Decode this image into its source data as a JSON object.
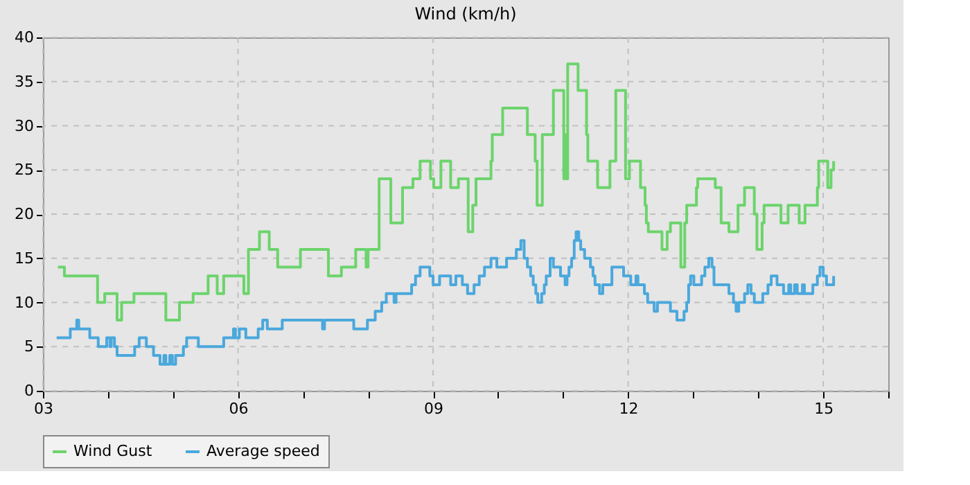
{
  "chart_data": {
    "type": "step",
    "title": "Wind (km/h)",
    "xlim": [
      3,
      16
    ],
    "xticks": [
      {
        "value": 3,
        "label": "03"
      },
      {
        "value": 4,
        "label": null
      },
      {
        "value": 5,
        "label": null
      },
      {
        "value": 6,
        "label": "06"
      },
      {
        "value": 7,
        "label": null
      },
      {
        "value": 8,
        "label": null
      },
      {
        "value": 9,
        "label": "09"
      },
      {
        "value": 10,
        "label": null
      },
      {
        "value": 11,
        "label": null
      },
      {
        "value": 12,
        "label": "12"
      },
      {
        "value": 13,
        "label": null
      },
      {
        "value": 14,
        "label": null
      },
      {
        "value": 15,
        "label": "15"
      },
      {
        "value": 16,
        "label": null
      }
    ],
    "ylim": [
      0,
      40
    ],
    "yticks": [
      0,
      5,
      10,
      15,
      20,
      25,
      30,
      35,
      40
    ],
    "grid": true,
    "legend": "bottom",
    "line_style": "solid",
    "marker": "none",
    "series": [
      {
        "name": "Wind Gust",
        "color": "#6cd46c",
        "x": [
          3.23,
          3.33,
          3.84,
          3.95,
          4.14,
          4.21,
          4.4,
          4.89,
          5.1,
          5.31,
          5.54,
          5.68,
          5.78,
          6.09,
          6.16,
          6.33,
          6.48,
          6.61,
          6.96,
          7.39,
          7.59,
          7.81,
          7.97,
          8.0,
          8.17,
          8.35,
          8.53,
          8.69,
          8.8,
          8.96,
          9.01,
          9.12,
          9.27,
          9.39,
          9.54,
          9.61,
          9.66,
          9.89,
          9.91,
          10.07,
          10.45,
          10.57,
          10.6,
          10.68,
          10.85,
          11.01,
          11.03,
          11.05,
          11.07,
          11.23,
          11.36,
          11.38,
          11.53,
          11.72,
          11.81,
          11.96,
          12.02,
          12.19,
          12.26,
          12.28,
          12.31,
          12.52,
          12.6,
          12.65,
          12.81,
          12.87,
          12.9,
          13.05,
          13.07,
          13.34,
          13.43,
          13.55,
          13.69,
          13.79,
          13.94,
          13.98,
          14.06,
          14.09,
          14.35,
          14.46,
          14.63,
          14.72,
          14.91,
          14.93,
          15.07,
          15.12,
          15.16
        ],
        "values": [
          14,
          13,
          10,
          11,
          8,
          10,
          11,
          8,
          10,
          11,
          13,
          11,
          13,
          11,
          16,
          18,
          16,
          14,
          16,
          13,
          14,
          16,
          14,
          16,
          24,
          19,
          23,
          24,
          26,
          24,
          23,
          26,
          23,
          24,
          18,
          21,
          24,
          26,
          29,
          32,
          29,
          26,
          21,
          29,
          34,
          24,
          29,
          24,
          37,
          34,
          29,
          26,
          23,
          26,
          34,
          24,
          26,
          23,
          21,
          19,
          18,
          16,
          18,
          19,
          14,
          19,
          21,
          23,
          24,
          23,
          19,
          18,
          21,
          23,
          20,
          16,
          19,
          21,
          19,
          21,
          19,
          21,
          23,
          26,
          23,
          25,
          26
        ]
      },
      {
        "name": "Average speed",
        "color": "#4aa8dc",
        "x": [
          3.21,
          3.42,
          3.52,
          3.55,
          3.72,
          3.85,
          3.98,
          4.03,
          4.05,
          4.1,
          4.14,
          4.41,
          4.48,
          4.59,
          4.7,
          4.8,
          4.86,
          4.89,
          4.95,
          4.99,
          5.04,
          5.16,
          5.21,
          5.39,
          5.78,
          5.93,
          5.96,
          6.02,
          6.12,
          6.31,
          6.38,
          6.45,
          6.56,
          6.68,
          7.3,
          7.33,
          7.78,
          7.99,
          8.11,
          8.21,
          8.28,
          8.4,
          8.43,
          8.63,
          8.67,
          8.73,
          8.8,
          8.95,
          9.0,
          9.1,
          9.27,
          9.35,
          9.45,
          9.53,
          9.63,
          9.71,
          9.79,
          9.89,
          9.98,
          10.13,
          10.28,
          10.35,
          10.4,
          10.45,
          10.5,
          10.54,
          10.58,
          10.61,
          10.67,
          10.71,
          10.74,
          10.8,
          10.85,
          10.91,
          10.96,
          11.03,
          11.06,
          11.09,
          11.13,
          11.17,
          11.2,
          11.24,
          11.27,
          11.33,
          11.42,
          11.46,
          11.49,
          11.56,
          11.61,
          11.75,
          11.93,
          12.04,
          12.12,
          12.15,
          12.18,
          12.25,
          12.3,
          12.4,
          12.45,
          12.65,
          12.75,
          12.86,
          12.9,
          12.93,
          12.96,
          13.01,
          13.13,
          13.18,
          13.24,
          13.29,
          13.32,
          13.55,
          13.62,
          13.66,
          13.7,
          13.79,
          13.84,
          13.89,
          13.94,
          14.07,
          14.15,
          14.2,
          14.29,
          14.39,
          14.47,
          14.5,
          14.56,
          14.6,
          14.68,
          14.71,
          14.84,
          14.91,
          14.95,
          15.0,
          15.05,
          15.12,
          15.16
        ],
        "values": [
          6,
          7,
          8,
          7,
          6,
          5,
          6,
          5,
          6,
          5,
          4,
          5,
          6,
          5,
          4,
          3,
          4,
          3,
          4,
          3,
          4,
          5,
          6,
          5,
          6,
          7,
          6,
          7,
          6,
          7,
          8,
          7,
          7,
          8,
          7,
          8,
          7,
          8,
          9,
          10,
          11,
          10,
          11,
          11,
          12,
          13,
          14,
          13,
          12,
          13,
          12,
          13,
          12,
          11,
          12,
          13,
          14,
          15,
          14,
          15,
          16,
          17,
          15,
          14,
          13,
          12,
          11,
          10,
          11,
          12,
          13,
          15,
          14,
          14,
          13,
          12,
          13,
          14,
          15,
          17,
          18,
          17,
          16,
          15,
          14,
          13,
          12,
          11,
          12,
          14,
          13,
          12,
          13,
          12,
          12,
          11,
          10,
          9,
          10,
          9,
          8,
          9,
          10,
          12,
          13,
          12,
          13,
          14,
          15,
          14,
          12,
          11,
          10,
          9,
          10,
          11,
          12,
          11,
          10,
          11,
          12,
          13,
          12,
          11,
          12,
          11,
          12,
          11,
          12,
          11,
          12,
          13,
          14,
          13,
          12,
          12,
          13
        ]
      }
    ]
  }
}
